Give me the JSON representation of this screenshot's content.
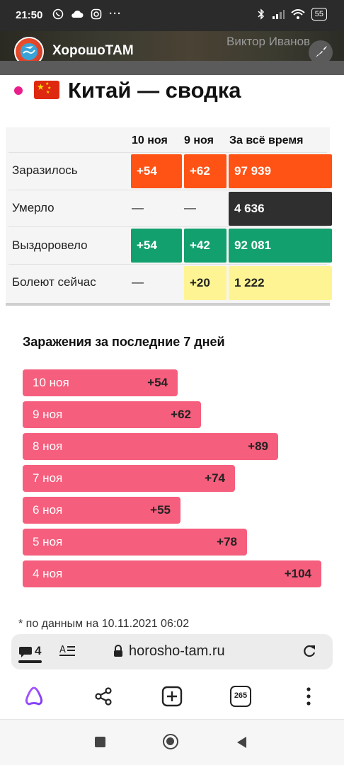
{
  "status_bar": {
    "time": "21:50",
    "left_icons": [
      "viber-icon",
      "cloud-icon",
      "instagram-icon",
      "more-dots-icon"
    ],
    "battery": "55"
  },
  "header": {
    "site_name": "ХорошоТАМ",
    "user_name": "Виктор Иванов"
  },
  "page": {
    "flag": "china-flag-icon",
    "title": "Китай — сводка"
  },
  "summary_table": {
    "columns": [
      "10 ноя",
      "9 ноя",
      "За всё время"
    ],
    "rows": [
      {
        "label": "Заразилось",
        "values": [
          "+54",
          "+62",
          "97 939"
        ]
      },
      {
        "label": "Умерло",
        "values": [
          "—",
          "—",
          "4 636"
        ]
      },
      {
        "label": "Выздоровело",
        "values": [
          "+54",
          "+42",
          "92 081"
        ]
      },
      {
        "label": "Болеют сейчас",
        "values": [
          "—",
          "+20",
          "1 222"
        ]
      }
    ],
    "colors": {
      "infected": "#ff5316",
      "deaths": "#2f2f2f",
      "recovered": "#13a06f",
      "active": "#fff493"
    }
  },
  "chart_data": {
    "type": "bar",
    "title": "Заражения за последние 7 дней",
    "orientation": "horizontal",
    "categories": [
      "10 ноя",
      "9 ноя",
      "8 ноя",
      "7 ноя",
      "6 ноя",
      "5 ноя",
      "4 ноя"
    ],
    "values": [
      54,
      62,
      89,
      74,
      55,
      78,
      104
    ],
    "value_labels": [
      "+54",
      "+62",
      "+89",
      "+74",
      "+55",
      "+78",
      "+104"
    ],
    "bar_color": "#f65e7d"
  },
  "footnote": "* по данным на 10.11.2021 06:02",
  "address_bar": {
    "comment_count": "4",
    "url": "horosho-tam.ru"
  },
  "browser_nav": {
    "tabs_count": "265"
  }
}
